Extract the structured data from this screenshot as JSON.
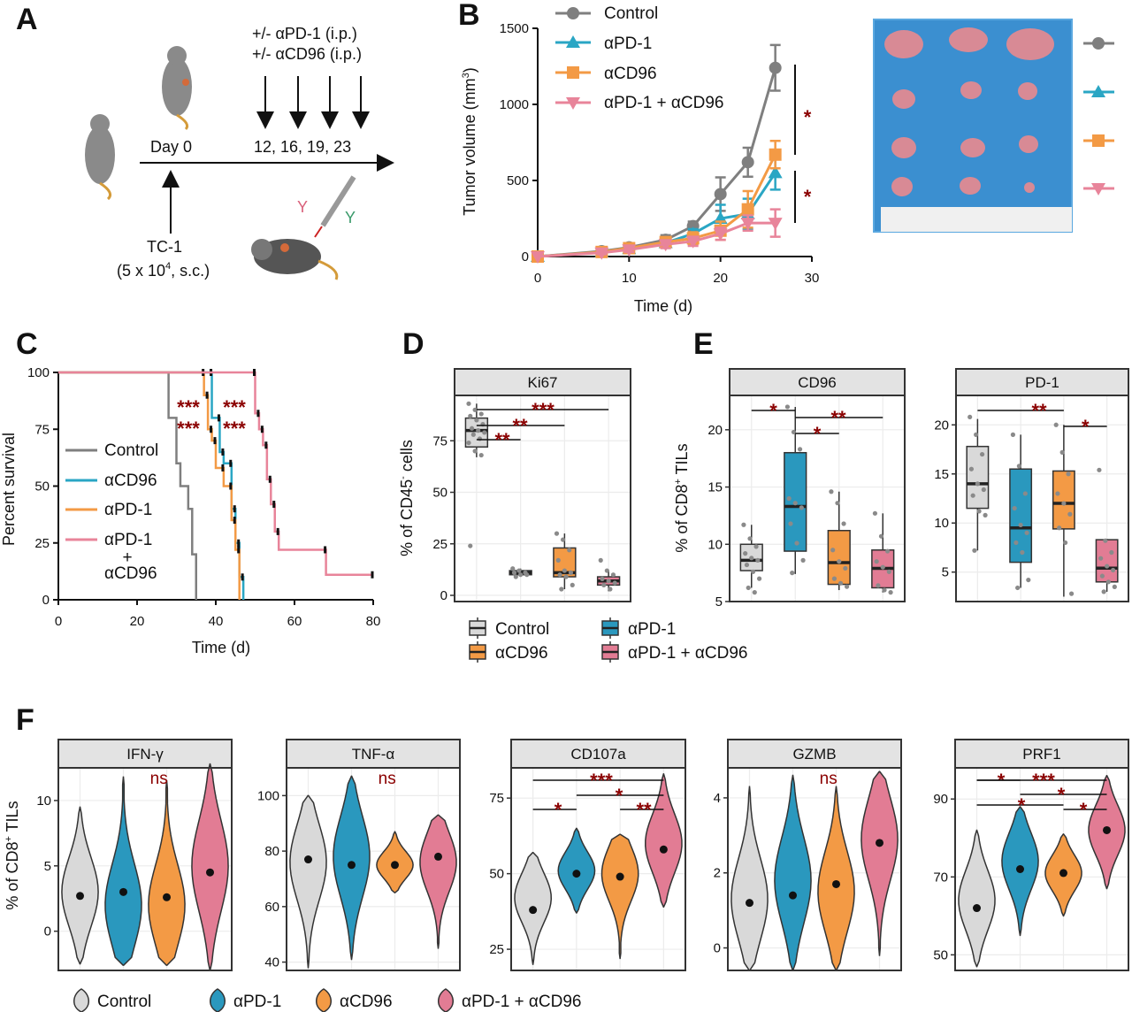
{
  "colors": {
    "control": "#7f7f7f",
    "apd1": "#2aa6c4",
    "acd96": "#f39a45",
    "combo": "#e8849a",
    "box_control": "#d9d9d9",
    "box_apd1": "#2a98be",
    "box_acd96": "#f39a45",
    "box_combo": "#e27c94",
    "significance": "#8b0000"
  },
  "panelA": {
    "letter": "A",
    "treat_line1": "+/- αPD-1 (i.p.)",
    "treat_line2": "+/- αCD96 (i.p.)",
    "day0": "Day 0",
    "days": "12, 16, 19, 23",
    "tc1_line1": "TC-1",
    "tc1_line2_a": "(5 x 10",
    "tc1_line2_sup": "4",
    "tc1_line2_b": ", s.c.)"
  },
  "panelB": {
    "letter": "B",
    "ylabel_a": "Tumor volume (mm",
    "ylabel_sup": "3",
    "ylabel_b": ")",
    "xlabel": "Time (d)",
    "sig1": "*",
    "sig2": "*",
    "legend": [
      "Control",
      "αPD-1",
      "αCD96",
      "αPD-1 + αCD96"
    ]
  },
  "panelC": {
    "letter": "C",
    "ylabel": "Percent survival",
    "xlabel": "Time (d)",
    "sig": "***",
    "legend": [
      "Control",
      "αCD96",
      "αPD-1",
      "αPD-1",
      "+",
      "αCD96"
    ]
  },
  "panelD": {
    "letter": "D",
    "strip": "Ki67",
    "ylabel_a": "% of CD45",
    "ylabel_sup": "-",
    "ylabel_b": " cells",
    "sig": [
      "***",
      "**",
      "**"
    ],
    "legend": [
      "Control",
      "αPD-1",
      "αCD96",
      "αPD-1 + αCD96"
    ]
  },
  "panelE": {
    "letter": "E",
    "strips": [
      "CD96",
      "PD-1"
    ],
    "ylabel_a": "% of CD8",
    "ylabel_sup": "+",
    "ylabel_b": " TILs",
    "sig_cd96": [
      "*",
      "**",
      "*"
    ],
    "sig_pd1": [
      "**",
      "*"
    ]
  },
  "panelF": {
    "letter": "F",
    "strips": [
      "IFN-γ",
      "TNF-α",
      "CD107a",
      "GZMB",
      "PRF1"
    ],
    "ylabel_a": "% of CD8",
    "ylabel_sup": "+",
    "ylabel_b": " TILs",
    "ns": "ns",
    "sig_cd107a": [
      "***",
      "*",
      "*",
      "**"
    ],
    "sig_prf1": [
      "*",
      "***",
      "*",
      "*",
      "*"
    ],
    "legend": [
      "Control",
      "αPD-1",
      "αCD96",
      "αPD-1 + αCD96"
    ]
  },
  "chart_data": [
    {
      "panel": "B",
      "type": "line",
      "xlabel": "Time (d)",
      "ylabel": "Tumor volume (mm3)",
      "xlim": [
        0,
        30
      ],
      "ylim": [
        0,
        1500
      ],
      "xticks": [
        0,
        10,
        20,
        30
      ],
      "yticks": [
        0,
        500,
        1000,
        1500
      ],
      "x": [
        0,
        7,
        10,
        14,
        17,
        20,
        23,
        26
      ],
      "series": [
        {
          "name": "Control",
          "marker": "circle",
          "values": [
            0,
            35,
            60,
            110,
            200,
            410,
            620,
            1240
          ],
          "err": [
            0,
            10,
            15,
            30,
            30,
            110,
            95,
            150
          ]
        },
        {
          "name": "αPD-1",
          "marker": "triangle-up",
          "values": [
            0,
            30,
            50,
            90,
            150,
            250,
            280,
            550
          ],
          "err": [
            0,
            10,
            15,
            30,
            30,
            90,
            100,
            110
          ]
        },
        {
          "name": "αCD96",
          "marker": "square",
          "values": [
            0,
            30,
            55,
            95,
            120,
            170,
            310,
            670
          ],
          "err": [
            0,
            10,
            15,
            30,
            40,
            60,
            120,
            90
          ]
        },
        {
          "name": "αPD-1 + αCD96",
          "marker": "triangle-down",
          "values": [
            0,
            25,
            45,
            80,
            100,
            150,
            220,
            220
          ],
          "err": [
            0,
            10,
            15,
            25,
            30,
            40,
            50,
            90
          ]
        }
      ]
    },
    {
      "panel": "C",
      "type": "line",
      "step": true,
      "xlabel": "Time (d)",
      "ylabel": "Percent survival",
      "xlim": [
        0,
        80
      ],
      "ylim": [
        0,
        100
      ],
      "xticks": [
        0,
        20,
        40,
        60,
        80
      ],
      "yticks": [
        0,
        25,
        50,
        75,
        100
      ],
      "series": [
        {
          "name": "Control",
          "steps": [
            [
              0,
              100
            ],
            [
              28,
              100
            ],
            [
              28,
              80
            ],
            [
              30,
              80
            ],
            [
              30,
              60
            ],
            [
              31,
              60
            ],
            [
              31,
              50
            ],
            [
              33,
              50
            ],
            [
              33,
              40
            ],
            [
              34,
              40
            ],
            [
              34,
              20
            ],
            [
              35,
              20
            ],
            [
              35,
              0
            ]
          ]
        },
        {
          "name": "αCD96",
          "steps": [
            [
              0,
              100
            ],
            [
              39,
              100
            ],
            [
              39,
              80
            ],
            [
              41,
              80
            ],
            [
              41,
              65
            ],
            [
              42,
              65
            ],
            [
              42,
              60
            ],
            [
              44,
              60
            ],
            [
              44,
              40
            ],
            [
              45,
              40
            ],
            [
              45,
              25
            ],
            [
              46,
              25
            ],
            [
              46,
              10
            ],
            [
              47,
              10
            ],
            [
              47,
              0
            ]
          ]
        },
        {
          "name": "αPD-1",
          "steps": [
            [
              0,
              100
            ],
            [
              37,
              100
            ],
            [
              37,
              90
            ],
            [
              38,
              90
            ],
            [
              38,
              75
            ],
            [
              39,
              75
            ],
            [
              39,
              70
            ],
            [
              40,
              70
            ],
            [
              40,
              58
            ],
            [
              42,
              58
            ],
            [
              42,
              50
            ],
            [
              44,
              50
            ],
            [
              44,
              35
            ],
            [
              45,
              35
            ],
            [
              45,
              22
            ],
            [
              46,
              22
            ],
            [
              46,
              0
            ]
          ]
        },
        {
          "name": "αPD-1 + αCD96",
          "steps": [
            [
              0,
              100
            ],
            [
              50,
              100
            ],
            [
              50,
              82
            ],
            [
              51,
              82
            ],
            [
              51,
              75
            ],
            [
              52,
              75
            ],
            [
              52,
              68
            ],
            [
              53,
              68
            ],
            [
              53,
              53
            ],
            [
              54,
              53
            ],
            [
              54,
              42
            ],
            [
              55,
              42
            ],
            [
              55,
              30
            ],
            [
              56,
              30
            ],
            [
              56,
              22
            ],
            [
              68,
              22
            ],
            [
              68,
              11
            ],
            [
              80,
              11
            ]
          ]
        }
      ]
    },
    {
      "panel": "D",
      "type": "box",
      "title": "Ki67",
      "ylabel": "% of CD45- cells",
      "yticks": [
        0,
        25,
        50,
        75
      ],
      "ylim": [
        -3,
        97
      ],
      "groups": [
        {
          "name": "Control",
          "q1": 72,
          "median": 80,
          "q3": 86,
          "min": 67,
          "max": 93,
          "points": [
            93,
            90,
            88,
            87,
            85,
            83,
            81,
            80,
            79,
            78,
            76,
            74,
            70,
            68,
            24
          ]
        },
        {
          "name": "αPD-1",
          "q1": 10,
          "median": 11,
          "q3": 12,
          "min": 9,
          "max": 13,
          "points": [
            13,
            12,
            11,
            11,
            10,
            10,
            9
          ]
        },
        {
          "name": "αCD96",
          "q1": 9,
          "median": 11,
          "q3": 23,
          "min": 3,
          "max": 30,
          "points": [
            30,
            27,
            22,
            17,
            12,
            11,
            10,
            9,
            5,
            3
          ]
        },
        {
          "name": "αPD-1 + αCD96",
          "q1": 5,
          "median": 7,
          "q3": 9,
          "min": 2,
          "max": 12,
          "points": [
            17,
            12,
            10,
            8,
            7,
            6,
            5,
            3
          ]
        }
      ]
    },
    {
      "panel": "E",
      "type": "box",
      "title": "CD96",
      "ylabel": "% of CD8+ TILs",
      "yticks": [
        5,
        10,
        15,
        20
      ],
      "ylim": [
        5,
        23
      ],
      "groups": [
        {
          "name": "Control",
          "q1": 7.7,
          "median": 8.6,
          "q3": 10.0,
          "min": 6.2,
          "max": 11.7,
          "points": [
            11.7,
            10.5,
            9.8,
            9.2,
            8.8,
            8.6,
            8.2,
            7.6,
            7.0,
            6.2,
            5.8
          ]
        },
        {
          "name": "αPD-1",
          "q1": 9.4,
          "median": 13.3,
          "q3": 18.0,
          "min": 7.4,
          "max": 22.0,
          "points": [
            22.0,
            19.8,
            18.3,
            14.0,
            13.6,
            13.2,
            11.8,
            10.1,
            8.6,
            7.5
          ]
        },
        {
          "name": "αCD96",
          "q1": 6.5,
          "median": 8.4,
          "q3": 11.2,
          "min": 6.0,
          "max": 14.6,
          "points": [
            14.6,
            13.6,
            11.8,
            9.5,
            8.5,
            7.9,
            7.0,
            6.6,
            6.3
          ]
        },
        {
          "name": "αPD-1 + αCD96",
          "q1": 6.2,
          "median": 7.9,
          "q3": 9.5,
          "min": 5.8,
          "max": 12.7,
          "points": [
            12.7,
            10.7,
            9.4,
            8.5,
            8.0,
            7.6,
            6.4,
            6.0,
            5.8
          ]
        }
      ]
    },
    {
      "panel": "E",
      "type": "box",
      "title": "PD-1",
      "ylabel": "% of CD8+ TILs",
      "yticks": [
        5,
        10,
        15,
        20
      ],
      "ylim": [
        2,
        23
      ],
      "groups": [
        {
          "name": "Control",
          "q1": 11.5,
          "median": 14.0,
          "q3": 17.8,
          "min": 7.2,
          "max": 20.6,
          "points": [
            20.8,
            19.0,
            17.0,
            15.5,
            14.0,
            13.4,
            12.8,
            11.2,
            10.8,
            7.2
          ]
        },
        {
          "name": "αPD-1",
          "q1": 6.0,
          "median": 9.5,
          "q3": 15.5,
          "min": 3.4,
          "max": 19.0,
          "points": [
            19.0,
            15.8,
            13.0,
            11.5,
            9.8,
            9.0,
            8.0,
            7.0,
            4.2,
            3.4
          ]
        },
        {
          "name": "αCD96",
          "q1": 9.4,
          "median": 12.0,
          "q3": 15.3,
          "min": 2.5,
          "max": 20.0,
          "points": [
            20.0,
            17.2,
            15.0,
            13.0,
            12.0,
            10.9,
            9.5,
            8.0,
            2.8
          ]
        },
        {
          "name": "αPD-1 + αCD96",
          "q1": 4.0,
          "median": 5.4,
          "q3": 8.3,
          "min": 3.0,
          "max": 8.4,
          "points": [
            15.4,
            8.2,
            7.0,
            6.4,
            5.6,
            5.2,
            4.6,
            4.0,
            3.5,
            3.0
          ]
        }
      ]
    },
    {
      "panel": "F",
      "type": "violin",
      "title": "IFN-γ",
      "ylabel": "% of CD8+ TILs",
      "yticks": [
        0,
        5,
        10
      ],
      "ylim": [
        -3,
        12.5
      ],
      "groups": [
        {
          "name": "Control",
          "mean": 2.7,
          "min": -2.5,
          "max": 9.5,
          "peak": 3.0
        },
        {
          "name": "αPD-1",
          "mean": 3.0,
          "min": -2.6,
          "max": 11.8,
          "peak": 2.0
        },
        {
          "name": "αCD96",
          "mean": 2.6,
          "min": -2.6,
          "max": 11.5,
          "peak": 2.0
        },
        {
          "name": "αPD-1 + αCD96",
          "mean": 4.5,
          "min": -3.0,
          "max": 12.8,
          "peak": 5.0
        }
      ]
    },
    {
      "panel": "F",
      "type": "violin",
      "title": "TNF-α",
      "yticks": [
        40,
        60,
        80,
        100
      ],
      "ylim": [
        37,
        110
      ],
      "groups": [
        {
          "name": "Control",
          "mean": 77,
          "min": 38,
          "max": 100,
          "peak": 76
        },
        {
          "name": "αPD-1",
          "mean": 75,
          "min": 41,
          "max": 107,
          "peak": 78
        },
        {
          "name": "αCD96",
          "mean": 75,
          "min": 65,
          "max": 87,
          "peak": 75
        },
        {
          "name": "αPD-1 + αCD96",
          "mean": 78,
          "min": 45,
          "max": 93,
          "peak": 76
        }
      ]
    },
    {
      "panel": "F",
      "type": "violin",
      "title": "CD107a",
      "yticks": [
        25,
        50,
        75
      ],
      "ylim": [
        18,
        85
      ],
      "groups": [
        {
          "name": "Control",
          "mean": 38,
          "min": 20,
          "max": 57,
          "peak": 42
        },
        {
          "name": "αPD-1",
          "mean": 50,
          "min": 37,
          "max": 65,
          "peak": 51
        },
        {
          "name": "αCD96",
          "mean": 49,
          "min": 22,
          "max": 63,
          "peak": 50
        },
        {
          "name": "αPD-1 + αCD96",
          "mean": 58,
          "min": 39,
          "max": 83,
          "peak": 60
        }
      ]
    },
    {
      "panel": "F",
      "type": "violin",
      "title": "GZMB",
      "yticks": [
        0,
        2,
        4
      ],
      "ylim": [
        -0.6,
        4.8
      ],
      "groups": [
        {
          "name": "Control",
          "mean": 1.2,
          "min": -0.6,
          "max": 4.3,
          "peak": 1.3
        },
        {
          "name": "αPD-1",
          "mean": 1.4,
          "min": -0.6,
          "max": 4.6,
          "peak": 1.8
        },
        {
          "name": "αCD96",
          "mean": 1.7,
          "min": -0.6,
          "max": 4.3,
          "peak": 1.5
        },
        {
          "name": "αPD-1 + αCD96",
          "mean": 2.8,
          "min": -0.2,
          "max": 4.7,
          "peak": 2.9
        }
      ]
    },
    {
      "panel": "F",
      "type": "violin",
      "title": "PRF1",
      "yticks": [
        50,
        70,
        90
      ],
      "ylim": [
        46,
        98
      ],
      "groups": [
        {
          "name": "Control",
          "mean": 62,
          "min": 47,
          "max": 82,
          "peak": 64
        },
        {
          "name": "αPD-1",
          "mean": 72,
          "min": 55,
          "max": 88,
          "peak": 74
        },
        {
          "name": "αCD96",
          "mean": 71,
          "min": 60,
          "max": 81,
          "peak": 71
        },
        {
          "name": "αPD-1 + αCD96",
          "mean": 82,
          "min": 67,
          "max": 96,
          "peak": 82
        }
      ]
    }
  ]
}
